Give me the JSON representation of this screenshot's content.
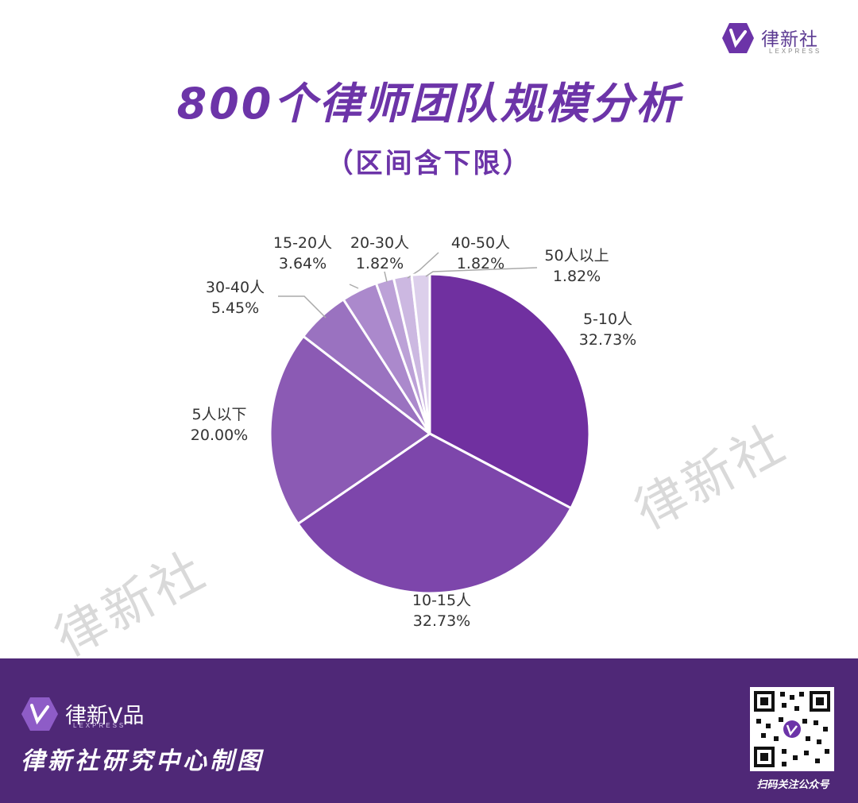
{
  "brand": {
    "name": "律新社",
    "sub": "LEXPRESS"
  },
  "title": "800个律师团队规模分析",
  "subtitle": "（区间含下限）",
  "watermark": "律新社",
  "colors": {
    "accent": "#6c34a8",
    "footer": "#4f2877"
  },
  "chart_data": {
    "type": "pie",
    "title": "800个律师团队规模分析",
    "subtitle": "（区间含下限）",
    "start": "12 o'clock, clockwise",
    "slices": [
      {
        "label": "5-10人",
        "value": 32.73,
        "pct_text": "32.73%",
        "color": "#7030a0"
      },
      {
        "label": "10-15人",
        "value": 32.73,
        "pct_text": "32.73%",
        "color": "#7d46ab"
      },
      {
        "label": "5人以下",
        "value": 20.0,
        "pct_text": "20.00%",
        "color": "#8b5ab4"
      },
      {
        "label": "30-40人",
        "value": 5.45,
        "pct_text": "5.45%",
        "color": "#9a72c0"
      },
      {
        "label": "15-20人",
        "value": 3.64,
        "pct_text": "3.64%",
        "color": "#ab89cc"
      },
      {
        "label": "20-30人",
        "value": 1.82,
        "pct_text": "1.82%",
        "color": "#bca1d7"
      },
      {
        "label": "40-50人",
        "value": 1.82,
        "pct_text": "1.82%",
        "color": "#ccb8e1"
      },
      {
        "label": "50人以上",
        "value": 1.82,
        "pct_text": "1.82%",
        "color": "#dccfeb"
      }
    ]
  },
  "footer": {
    "brand": "律新V品",
    "brand_sub": "LEXPRESS",
    "credit": "律新社研究中心制图",
    "qr_label": "扫码关注公众号"
  }
}
